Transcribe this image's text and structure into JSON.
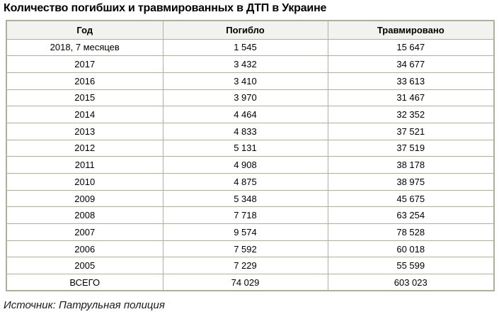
{
  "title": "Количество погибших и травмированных в ДТП в Украине",
  "source": "Источник: Патрульная полиция",
  "colors": {
    "table_border": "#aab39a",
    "header_background": "#f2f2f0",
    "cell_background": "#ffffff",
    "text": "#000000"
  },
  "chart_data": {
    "type": "table",
    "title": "Количество погибших и травмированных в ДТП в Украине",
    "columns": [
      "Год",
      "Погибло",
      "Травмировано"
    ],
    "rows": [
      {
        "year": "2018, 7 месяцев",
        "died": "1 545",
        "injured": "15 647"
      },
      {
        "year": "2017",
        "died": "3 432",
        "injured": "34 677"
      },
      {
        "year": "2016",
        "died": "3 410",
        "injured": "33 613"
      },
      {
        "year": "2015",
        "died": "3 970",
        "injured": "31 467"
      },
      {
        "year": "2014",
        "died": "4 464",
        "injured": "32 352"
      },
      {
        "year": "2013",
        "died": "4 833",
        "injured": "37 521"
      },
      {
        "year": "2012",
        "died": "5 131",
        "injured": "37 519"
      },
      {
        "year": "2011",
        "died": "4 908",
        "injured": "38 178"
      },
      {
        "year": "2010",
        "died": "4 875",
        "injured": "38 975"
      },
      {
        "year": "2009",
        "died": "5 348",
        "injured": "45 675"
      },
      {
        "year": "2008",
        "died": "7 718",
        "injured": "63 254"
      },
      {
        "year": "2007",
        "died": "9 574",
        "injured": "78 528"
      },
      {
        "year": "2006",
        "died": "7 592",
        "injured": "60 018"
      },
      {
        "year": "2005",
        "died": "7 229",
        "injured": "55 599"
      }
    ],
    "total_row": {
      "year": "ВСЕГО",
      "died": "74 029",
      "injured": "603 023"
    },
    "source": "Источник: Патрульная полиция"
  }
}
